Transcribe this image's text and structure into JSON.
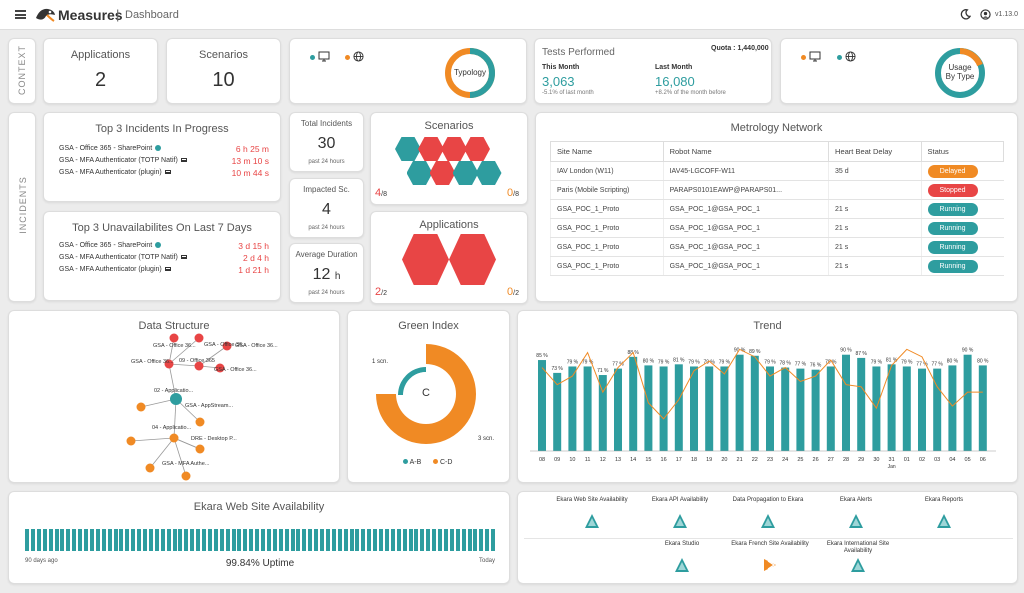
{
  "header": {
    "app_name": "Measures",
    "separator": "|",
    "page": "Dashboard",
    "version": "v1.13.0"
  },
  "sections": {
    "context": "CONTEXT",
    "incidents": "INCIDENTS"
  },
  "context": {
    "applications": {
      "label": "Applications",
      "value": "2"
    },
    "scenarios": {
      "label": "Scenarios",
      "value": "10"
    },
    "typology": {
      "label": "Typology"
    },
    "tests": {
      "title": "Tests Performed",
      "quota": "Quota : 1,440,000",
      "this_month_label": "This Month",
      "this_month_value": "3,063",
      "this_month_delta": "-5.1% of last month",
      "last_month_label": "Last Month",
      "last_month_value": "16,080",
      "last_month_delta": "+8.2% of the month before"
    },
    "usage": {
      "label1": "Usage",
      "label2": "By Type"
    }
  },
  "incidents": {
    "top3": {
      "title": "Top 3 Incidents In Progress",
      "rows": [
        {
          "name": "GSA - Office 365 - SharePoint",
          "value": "6 h 25 m"
        },
        {
          "name": "GSA - MFA Authenticator (TOTP Natif)",
          "value": "13 m 10 s"
        },
        {
          "name": "GSA - MFA Authenticator (plugin)",
          "value": "10 m 44 s"
        }
      ]
    },
    "unavail": {
      "title": "Top 3 Unavailabilites On Last 7 Days",
      "rows": [
        {
          "name": "GSA - Office 365 - SharePoint",
          "value": "3 d 15 h"
        },
        {
          "name": "GSA - MFA Authenticator (TOTP Natif)",
          "value": "2 d 4 h"
        },
        {
          "name": "GSA - MFA Authenticator (plugin)",
          "value": "1 d 21 h"
        }
      ]
    },
    "total": {
      "label": "Total Incidents",
      "value": "30",
      "sub": "past 24 hours"
    },
    "impacted": {
      "label": "Impacted Sc.",
      "value": "4",
      "sub": "past 24 hours"
    },
    "avgdur": {
      "label": "Average Duration",
      "value": "12",
      "unit": "h",
      "sub": "past 24 hours"
    },
    "scen": {
      "title": "Scenarios",
      "left_num": "4",
      "left_den": "/8",
      "right_num": "0",
      "right_den": "/8"
    },
    "apps": {
      "title": "Applications",
      "left_num": "2",
      "left_den": "/2",
      "right_num": "0",
      "right_den": "/2"
    }
  },
  "metrology": {
    "title": "Metrology Network",
    "headers": [
      "Site Name",
      "Robot Name",
      "Heart Beat Delay",
      "Status"
    ],
    "rows": [
      {
        "site": "IAV London (W11)",
        "robot": "IAV45-LGCOFF-W11",
        "delay": "35 d",
        "status": "Delayed",
        "color": "#f08a24"
      },
      {
        "site": "Paris (Mobile Scripting)",
        "robot": "PARAPS0101EAWP@PARAPS01...",
        "delay": "",
        "status": "Stopped",
        "color": "#e84545"
      },
      {
        "site": "GSA_POC_1_Proto",
        "robot": "GSA_POC_1@GSA_POC_1",
        "delay": "21 s",
        "status": "Running",
        "color": "#2e9d9f"
      },
      {
        "site": "GSA_POC_1_Proto",
        "robot": "GSA_POC_1@GSA_POC_1",
        "delay": "21 s",
        "status": "Running",
        "color": "#2e9d9f"
      },
      {
        "site": "GSA_POC_1_Proto",
        "robot": "GSA_POC_1@GSA_POC_1",
        "delay": "21 s",
        "status": "Running",
        "color": "#2e9d9f"
      },
      {
        "site": "GSA_POC_1_Proto",
        "robot": "GSA_POC_1@GSA_POC_1",
        "delay": "21 s",
        "status": "Running",
        "color": "#2e9d9f"
      }
    ]
  },
  "data_structure": {
    "title": "Data Structure",
    "labels": [
      "GSA - Office 36...",
      "GSA - Office 36...",
      "GSA - Office 36...",
      "09 - Office 365",
      "GSA - Office 36...",
      "GSA - Office 36...",
      "02 - Applicatio...",
      "GSA - AppStream...",
      "04 - Applicatio...",
      "DRE - Desktop P...",
      "GSA - MFA Authe..."
    ]
  },
  "green_index": {
    "title": "Green Index",
    "grade": "C",
    "label_inner": "1 scn.",
    "label_outer": "3 scn.",
    "legend": [
      "A-B",
      "C-D"
    ]
  },
  "chart_data": {
    "type": "bar",
    "title": "Trend",
    "categories": [
      "08",
      "09",
      "10",
      "11",
      "12",
      "13",
      "14",
      "15",
      "16",
      "17",
      "18",
      "19",
      "20",
      "21",
      "22",
      "23",
      "24",
      "25",
      "26",
      "27",
      "28",
      "29",
      "30",
      "31",
      "01",
      "02",
      "03",
      "04",
      "05",
      "06"
    ],
    "x_sub": "Jan",
    "values": [
      85,
      73,
      79,
      79,
      71,
      77,
      88,
      80,
      79,
      81,
      79,
      79,
      79,
      90,
      89,
      79,
      78,
      77,
      76,
      79,
      90,
      87,
      79,
      81,
      79,
      77,
      77,
      80,
      90,
      80
    ],
    "labels": [
      "85 %",
      "73 %",
      "79 %",
      "79 %",
      "71 %",
      "77 %",
      "88 %",
      "80 %",
      "79 %",
      "81 %",
      "79 %",
      "79 %",
      "79 %",
      "90 %",
      "89 %",
      "79 %",
      "78 %",
      "77 %",
      "76 %",
      "79 %",
      "90 %",
      "87 %",
      "79 %",
      "81 %",
      "79 %",
      "77 %",
      "77 %",
      "80 %",
      "90 %",
      "80 %"
    ],
    "line": [
      78,
      62,
      70,
      92,
      55,
      78,
      92,
      45,
      30,
      48,
      75,
      84,
      72,
      95,
      88,
      70,
      78,
      65,
      70,
      85,
      62,
      60,
      40,
      80,
      95,
      88,
      60,
      42,
      55,
      55
    ],
    "ylim": [
      0,
      100
    ],
    "colors": {
      "bar": "#2e9d9f",
      "line": "#f08a24"
    }
  },
  "availability": {
    "title": "Ekara Web Site Availability",
    "left": "90 days ago",
    "uptime": "99.84% Uptime",
    "right": "Today",
    "bar_count": 80
  },
  "services": {
    "row1": [
      "Ekara Web Site Availability",
      "Ekara API Availability",
      "Data Propagation to Ekara",
      "Ekara Alerts",
      "Ekara Reports"
    ],
    "row2": [
      "Ekara Studio",
      "Ekara French Site Availability",
      "Ekara International Site Availability"
    ]
  },
  "colors": {
    "teal": "#2e9d9f",
    "orange": "#f08a24",
    "red": "#e84545"
  }
}
